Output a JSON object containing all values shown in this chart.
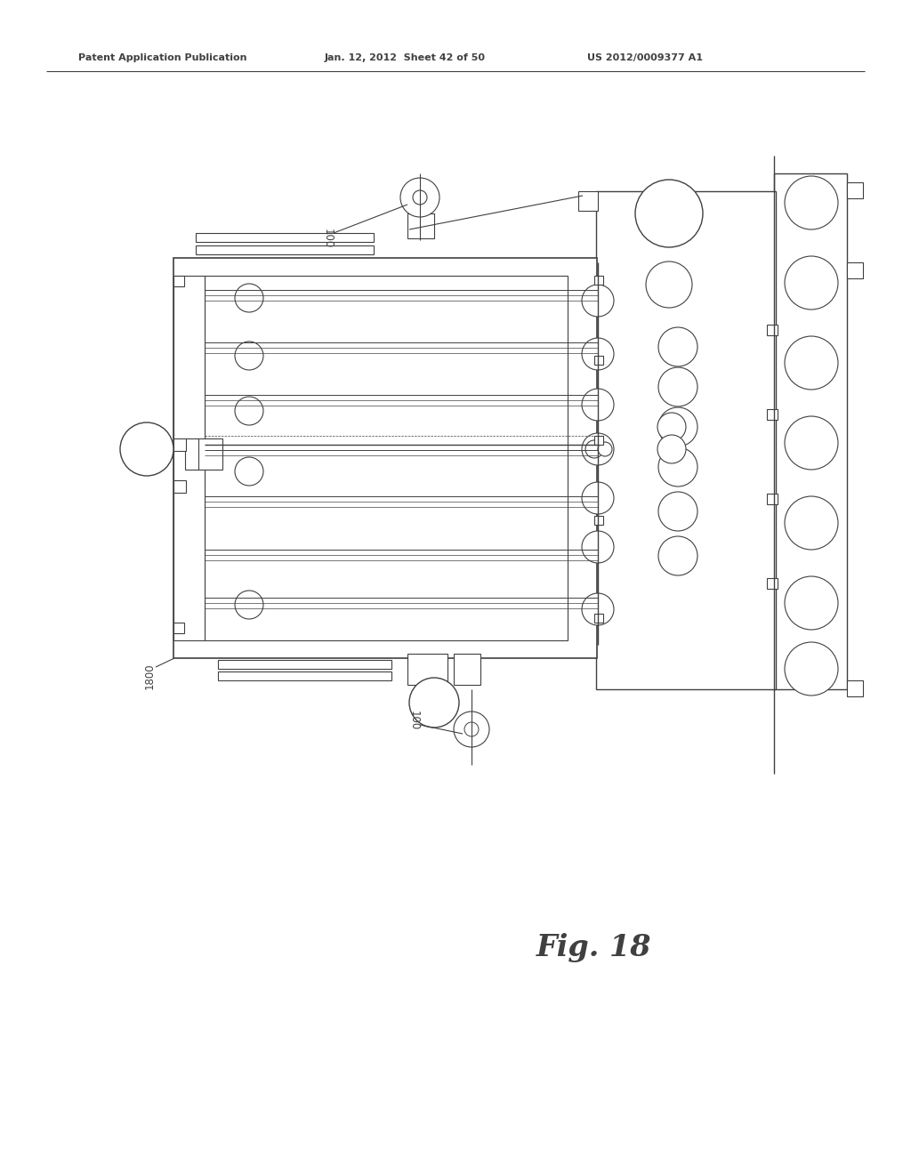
{
  "bg_color": "#ffffff",
  "line_color": "#404040",
  "header_left": "Patent Application Publication",
  "header_center": "Jan. 12, 2012  Sheet 42 of 50",
  "header_right": "US 2012/0009377 A1",
  "fig_label": "Fig. 18",
  "label_100_top": "100",
  "label_100_bottom": "100",
  "label_1800": "1800"
}
